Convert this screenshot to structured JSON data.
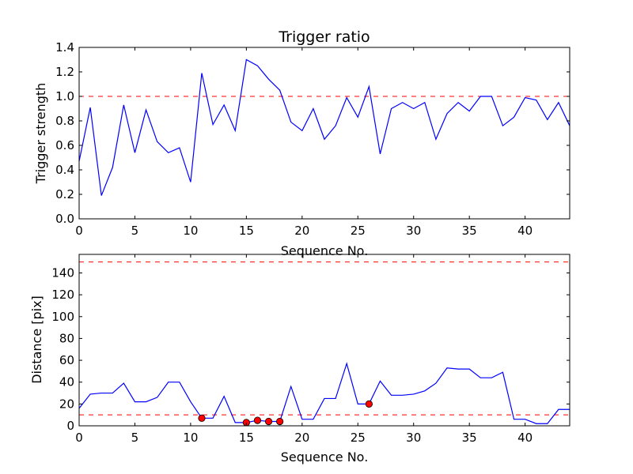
{
  "chart_data": [
    {
      "type": "line",
      "title": "Trigger ratio",
      "xlabel": "Sequence No.",
      "ylabel": "Trigger strength",
      "xlim": [
        0,
        44
      ],
      "ylim": [
        0,
        1.4
      ],
      "xticks": [
        0,
        5,
        10,
        15,
        20,
        25,
        30,
        35,
        40
      ],
      "yticks": [
        0.0,
        0.2,
        0.4,
        0.6,
        0.8,
        1.0,
        1.2,
        1.4
      ],
      "xtick_labels": [
        "0",
        "5",
        "10",
        "15",
        "20",
        "25",
        "30",
        "35",
        "40"
      ],
      "ytick_labels": [
        "0.0",
        "0.2",
        "0.4",
        "0.6",
        "0.8",
        "1.0",
        "1.2",
        "1.4"
      ],
      "grid": false,
      "line_color": "#0000ff",
      "threshold_color": "#ff0000",
      "thresholds": [
        1.0
      ],
      "x": [
        0,
        1,
        2,
        3,
        4,
        5,
        6,
        7,
        8,
        9,
        10,
        11,
        12,
        13,
        14,
        15,
        16,
        17,
        18,
        19,
        20,
        21,
        22,
        23,
        24,
        25,
        26,
        27,
        28,
        29,
        30,
        31,
        32,
        33,
        34,
        35,
        36,
        37,
        38,
        39,
        40,
        41,
        42,
        43,
        44
      ],
      "series": [
        {
          "values": [
            0.47,
            0.91,
            0.19,
            0.42,
            0.93,
            0.54,
            0.89,
            0.63,
            0.54,
            0.58,
            0.3,
            1.19,
            0.77,
            0.93,
            0.72,
            1.3,
            1.25,
            1.14,
            1.05,
            0.79,
            0.72,
            0.9,
            0.65,
            0.76,
            0.99,
            0.83,
            1.08,
            0.53,
            0.9,
            0.95,
            0.9,
            0.95,
            0.65,
            0.86,
            0.95,
            0.88,
            1.0,
            1.0,
            0.76,
            0.83,
            0.99,
            0.97,
            0.81,
            0.95,
            0.76
          ]
        }
      ]
    },
    {
      "type": "line",
      "title": "",
      "xlabel": "Sequence No.",
      "ylabel": "Distance [pix]",
      "xlim": [
        0,
        44
      ],
      "ylim": [
        0,
        157
      ],
      "xticks": [
        0,
        5,
        10,
        15,
        20,
        25,
        30,
        35,
        40
      ],
      "yticks": [
        0,
        20,
        40,
        60,
        80,
        100,
        120,
        140
      ],
      "xtick_labels": [
        "0",
        "5",
        "10",
        "15",
        "20",
        "25",
        "30",
        "35",
        "40"
      ],
      "ytick_labels": [
        "0",
        "20",
        "40",
        "60",
        "80",
        "100",
        "120",
        "140"
      ],
      "grid": false,
      "line_color": "#0000ff",
      "threshold_color": "#ff0000",
      "marker_color": "#ff0000",
      "thresholds": [
        10,
        150
      ],
      "x": [
        0,
        1,
        2,
        3,
        4,
        5,
        6,
        7,
        8,
        9,
        10,
        11,
        12,
        13,
        14,
        15,
        16,
        17,
        18,
        19,
        20,
        21,
        22,
        23,
        24,
        25,
        26,
        27,
        28,
        29,
        30,
        31,
        32,
        33,
        34,
        35,
        36,
        37,
        38,
        39,
        40,
        41,
        42,
        43,
        44
      ],
      "series": [
        {
          "values": [
            16,
            29,
            30,
            30,
            39,
            22,
            22,
            26,
            40,
            40,
            22,
            7,
            7,
            27,
            3,
            3,
            5,
            4,
            4,
            36,
            6,
            6,
            25,
            25,
            57,
            20,
            20,
            41,
            28,
            28,
            29,
            32,
            39,
            53,
            52,
            52,
            44,
            44,
            49,
            6,
            6,
            2,
            2,
            15,
            15
          ]
        }
      ],
      "markers": {
        "x": [
          11,
          15,
          16,
          17,
          18,
          26
        ],
        "y": [
          7,
          3,
          5,
          4,
          4,
          20
        ]
      }
    }
  ]
}
